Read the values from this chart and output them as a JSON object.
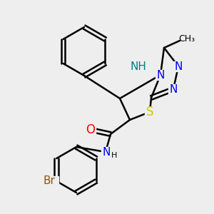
{
  "background_color": "#eeeeee",
  "atom_colors": {
    "N": "#0000ff",
    "NH": "#008080",
    "S": "#cccc00",
    "O": "#ff0000",
    "Br": "#a05000",
    "C": "#000000"
  },
  "bond_color": "#000000",
  "bond_width": 1.8
}
